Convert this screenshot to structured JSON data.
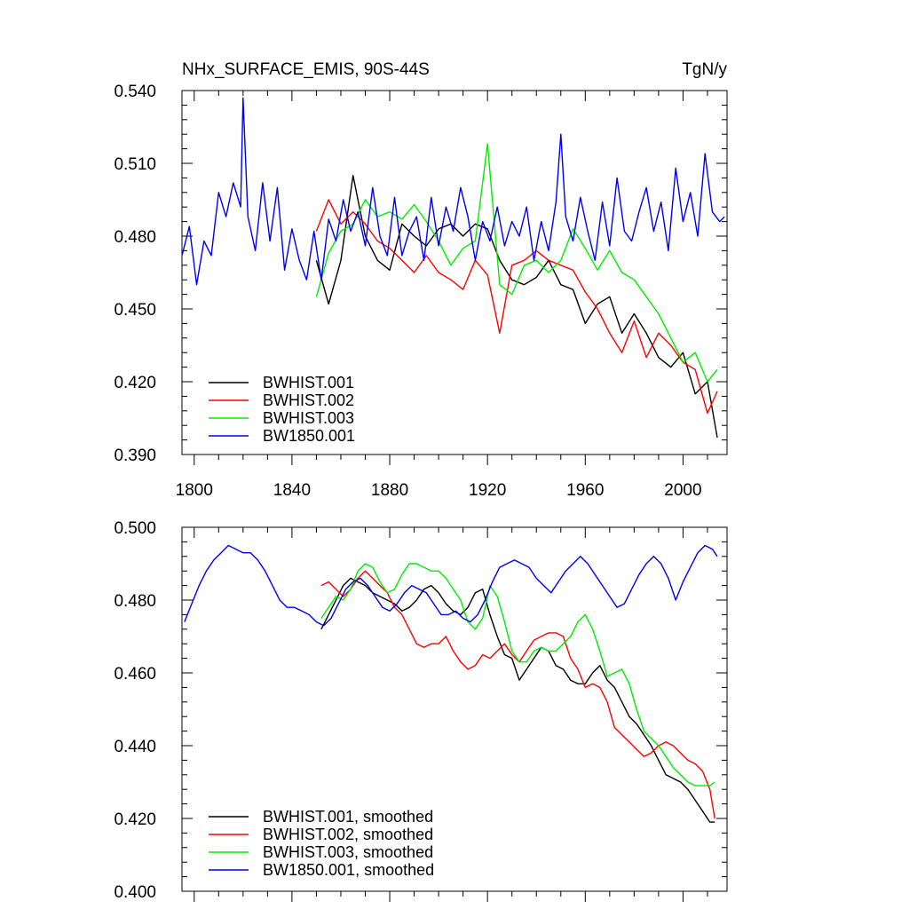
{
  "chart_data": [
    {
      "type": "line",
      "title": "NHx_SURFACE_EMIS, 90S-44S",
      "units": "TgN/y",
      "xlabel": "",
      "ylabel": "",
      "xlim": [
        1795,
        2018
      ],
      "ylim": [
        0.39,
        0.54
      ],
      "xticks": [
        1800,
        1840,
        1880,
        1920,
        1960,
        2000
      ],
      "xtick_labels": [
        "1800",
        "1840",
        "1880",
        "1920",
        "1960",
        "2000"
      ],
      "yticks": [
        0.39,
        0.42,
        0.45,
        0.48,
        0.51,
        0.54
      ],
      "ytick_labels": [
        "0.390",
        "0.420",
        "0.450",
        "0.480",
        "0.510",
        "0.540"
      ],
      "legend_position": "bottom-left",
      "series": [
        {
          "name": "BWHIST.001",
          "color": "#000000",
          "x": [
            1850,
            1855,
            1860,
            1865,
            1870,
            1875,
            1880,
            1885,
            1890,
            1895,
            1900,
            1905,
            1910,
            1915,
            1920,
            1925,
            1930,
            1935,
            1940,
            1945,
            1950,
            1955,
            1960,
            1965,
            1970,
            1975,
            1980,
            1985,
            1990,
            1995,
            2000,
            2005,
            2010,
            2014
          ],
          "y": [
            0.47,
            0.452,
            0.47,
            0.505,
            0.48,
            0.47,
            0.466,
            0.485,
            0.48,
            0.476,
            0.483,
            0.485,
            0.48,
            0.485,
            0.483,
            0.47,
            0.462,
            0.46,
            0.463,
            0.47,
            0.46,
            0.458,
            0.444,
            0.452,
            0.455,
            0.44,
            0.448,
            0.44,
            0.43,
            0.426,
            0.432,
            0.415,
            0.42,
            0.397
          ]
        },
        {
          "name": "BWHIST.002",
          "color": "#ff0000",
          "x": [
            1850,
            1855,
            1860,
            1865,
            1870,
            1875,
            1880,
            1885,
            1890,
            1895,
            1900,
            1905,
            1910,
            1915,
            1920,
            1925,
            1930,
            1935,
            1940,
            1945,
            1950,
            1955,
            1960,
            1965,
            1970,
            1975,
            1980,
            1985,
            1990,
            1995,
            2000,
            2005,
            2010,
            2014
          ],
          "y": [
            0.482,
            0.495,
            0.485,
            0.49,
            0.485,
            0.478,
            0.475,
            0.47,
            0.465,
            0.472,
            0.465,
            0.462,
            0.458,
            0.47,
            0.464,
            0.44,
            0.468,
            0.47,
            0.474,
            0.47,
            0.468,
            0.466,
            0.457,
            0.45,
            0.44,
            0.432,
            0.445,
            0.43,
            0.44,
            0.435,
            0.428,
            0.425,
            0.407,
            0.416
          ]
        },
        {
          "name": "BWHIST.003",
          "color": "#00ee00",
          "x": [
            1850,
            1855,
            1860,
            1865,
            1870,
            1875,
            1880,
            1885,
            1890,
            1895,
            1900,
            1905,
            1910,
            1915,
            1920,
            1925,
            1930,
            1935,
            1940,
            1945,
            1950,
            1955,
            1960,
            1965,
            1970,
            1975,
            1980,
            1985,
            1990,
            1995,
            2000,
            2005,
            2010,
            2014
          ],
          "y": [
            0.455,
            0.473,
            0.482,
            0.485,
            0.495,
            0.488,
            0.49,
            0.487,
            0.493,
            0.486,
            0.478,
            0.468,
            0.475,
            0.478,
            0.518,
            0.46,
            0.456,
            0.468,
            0.47,
            0.465,
            0.47,
            0.483,
            0.475,
            0.466,
            0.474,
            0.465,
            0.462,
            0.455,
            0.448,
            0.438,
            0.428,
            0.432,
            0.42,
            0.425
          ]
        },
        {
          "name": "BW1850.001",
          "color": "#0000ee",
          "x": [
            1795,
            1798,
            1801,
            1804,
            1807,
            1810,
            1813,
            1816,
            1819,
            1820,
            1822,
            1825,
            1828,
            1831,
            1834,
            1837,
            1840,
            1843,
            1846,
            1849,
            1852,
            1855,
            1858,
            1861,
            1864,
            1867,
            1870,
            1873,
            1876,
            1879,
            1882,
            1885,
            1888,
            1891,
            1894,
            1897,
            1900,
            1903,
            1906,
            1909,
            1912,
            1915,
            1918,
            1921,
            1924,
            1927,
            1930,
            1933,
            1936,
            1939,
            1942,
            1945,
            1948,
            1950,
            1952,
            1955,
            1958,
            1961,
            1964,
            1967,
            1970,
            1973,
            1976,
            1979,
            1982,
            1985,
            1988,
            1991,
            1994,
            1997,
            2000,
            2003,
            2006,
            2009,
            2012,
            2015,
            2017
          ],
          "y": [
            0.472,
            0.484,
            0.46,
            0.478,
            0.472,
            0.498,
            0.488,
            0.502,
            0.492,
            0.537,
            0.488,
            0.474,
            0.502,
            0.478,
            0.5,
            0.466,
            0.483,
            0.47,
            0.462,
            0.482,
            0.462,
            0.487,
            0.478,
            0.495,
            0.482,
            0.49,
            0.476,
            0.5,
            0.48,
            0.472,
            0.496,
            0.472,
            0.482,
            0.488,
            0.47,
            0.496,
            0.476,
            0.492,
            0.482,
            0.5,
            0.488,
            0.47,
            0.486,
            0.478,
            0.492,
            0.476,
            0.486,
            0.48,
            0.492,
            0.47,
            0.486,
            0.474,
            0.494,
            0.522,
            0.488,
            0.478,
            0.496,
            0.482,
            0.47,
            0.494,
            0.476,
            0.504,
            0.482,
            0.478,
            0.49,
            0.5,
            0.482,
            0.494,
            0.474,
            0.508,
            0.486,
            0.498,
            0.48,
            0.514,
            0.49,
            0.486,
            0.488
          ]
        }
      ]
    },
    {
      "type": "line",
      "title": "",
      "xlabel": "",
      "ylabel": "",
      "xlim": [
        1795,
        2018
      ],
      "ylim": [
        0.4,
        0.5
      ],
      "xticks": [
        1800,
        1840,
        1880,
        1920,
        1960,
        2000
      ],
      "yticks": [
        0.4,
        0.42,
        0.44,
        0.46,
        0.48,
        0.5
      ],
      "ytick_labels": [
        "0.400",
        "0.420",
        "0.440",
        "0.460",
        "0.480",
        "0.500"
      ],
      "legend_position": "bottom-left",
      "series": [
        {
          "name": "BWHIST.001, smoothed",
          "color": "#000000",
          "x": [
            1852,
            1855,
            1858,
            1861,
            1864,
            1867,
            1870,
            1873,
            1876,
            1879,
            1882,
            1885,
            1888,
            1891,
            1894,
            1897,
            1900,
            1903,
            1906,
            1909,
            1912,
            1915,
            1918,
            1921,
            1924,
            1927,
            1930,
            1933,
            1936,
            1939,
            1942,
            1945,
            1948,
            1951,
            1954,
            1957,
            1960,
            1963,
            1966,
            1969,
            1972,
            1975,
            1978,
            1981,
            1984,
            1987,
            1990,
            1993,
            1996,
            1999,
            2002,
            2005,
            2008,
            2011,
            2013
          ],
          "y": [
            0.472,
            0.476,
            0.48,
            0.484,
            0.486,
            0.485,
            0.484,
            0.482,
            0.481,
            0.48,
            0.479,
            0.477,
            0.478,
            0.48,
            0.483,
            0.484,
            0.482,
            0.479,
            0.477,
            0.476,
            0.478,
            0.482,
            0.483,
            0.476,
            0.47,
            0.465,
            0.464,
            0.458,
            0.461,
            0.464,
            0.467,
            0.466,
            0.462,
            0.461,
            0.458,
            0.457,
            0.457,
            0.46,
            0.462,
            0.458,
            0.456,
            0.452,
            0.448,
            0.446,
            0.443,
            0.44,
            0.436,
            0.432,
            0.431,
            0.43,
            0.428,
            0.425,
            0.422,
            0.419,
            0.419
          ]
        },
        {
          "name": "BWHIST.002, smoothed",
          "color": "#ff0000",
          "x": [
            1852,
            1855,
            1858,
            1861,
            1864,
            1867,
            1870,
            1873,
            1876,
            1879,
            1882,
            1885,
            1888,
            1891,
            1894,
            1897,
            1900,
            1903,
            1906,
            1909,
            1912,
            1915,
            1918,
            1921,
            1924,
            1927,
            1930,
            1933,
            1936,
            1939,
            1942,
            1945,
            1948,
            1951,
            1954,
            1957,
            1960,
            1963,
            1966,
            1969,
            1972,
            1975,
            1978,
            1981,
            1984,
            1987,
            1990,
            1993,
            1996,
            1999,
            2002,
            2005,
            2008,
            2011,
            2013
          ],
          "y": [
            0.484,
            0.485,
            0.483,
            0.481,
            0.483,
            0.486,
            0.488,
            0.486,
            0.484,
            0.482,
            0.478,
            0.476,
            0.472,
            0.468,
            0.467,
            0.468,
            0.468,
            0.47,
            0.466,
            0.463,
            0.461,
            0.462,
            0.465,
            0.464,
            0.466,
            0.468,
            0.465,
            0.463,
            0.466,
            0.469,
            0.47,
            0.471,
            0.471,
            0.47,
            0.464,
            0.461,
            0.456,
            0.457,
            0.456,
            0.452,
            0.445,
            0.443,
            0.441,
            0.439,
            0.437,
            0.438,
            0.44,
            0.441,
            0.44,
            0.438,
            0.436,
            0.435,
            0.433,
            0.428,
            0.42
          ]
        },
        {
          "name": "BWHIST.003, smoothed",
          "color": "#00ee00",
          "x": [
            1852,
            1855,
            1858,
            1861,
            1864,
            1867,
            1870,
            1873,
            1876,
            1879,
            1882,
            1885,
            1888,
            1891,
            1894,
            1897,
            1900,
            1903,
            1906,
            1909,
            1912,
            1915,
            1918,
            1921,
            1924,
            1927,
            1930,
            1933,
            1936,
            1939,
            1942,
            1945,
            1948,
            1951,
            1954,
            1957,
            1960,
            1963,
            1966,
            1969,
            1972,
            1975,
            1978,
            1981,
            1984,
            1987,
            1990,
            1993,
            1996,
            1999,
            2002,
            2005,
            2008,
            2011,
            2013
          ],
          "y": [
            0.475,
            0.478,
            0.481,
            0.48,
            0.483,
            0.488,
            0.49,
            0.489,
            0.485,
            0.482,
            0.483,
            0.487,
            0.49,
            0.49,
            0.489,
            0.488,
            0.488,
            0.486,
            0.483,
            0.48,
            0.474,
            0.472,
            0.475,
            0.484,
            0.481,
            0.474,
            0.466,
            0.463,
            0.463,
            0.466,
            0.467,
            0.466,
            0.466,
            0.468,
            0.47,
            0.474,
            0.476,
            0.472,
            0.466,
            0.459,
            0.46,
            0.461,
            0.457,
            0.45,
            0.444,
            0.442,
            0.44,
            0.437,
            0.434,
            0.432,
            0.43,
            0.429,
            0.429,
            0.429,
            0.43
          ]
        },
        {
          "name": "BW1850.001, smoothed",
          "color": "#0000ee",
          "x": [
            1796,
            1799,
            1802,
            1805,
            1808,
            1811,
            1814,
            1817,
            1820,
            1823,
            1826,
            1829,
            1832,
            1835,
            1838,
            1841,
            1844,
            1847,
            1850,
            1853,
            1856,
            1859,
            1862,
            1865,
            1868,
            1871,
            1874,
            1877,
            1880,
            1883,
            1886,
            1889,
            1892,
            1895,
            1898,
            1901,
            1904,
            1907,
            1910,
            1913,
            1916,
            1919,
            1922,
            1925,
            1928,
            1931,
            1934,
            1937,
            1940,
            1943,
            1946,
            1949,
            1952,
            1955,
            1958,
            1961,
            1964,
            1967,
            1970,
            1973,
            1976,
            1979,
            1982,
            1985,
            1988,
            1991,
            1994,
            1997,
            2000,
            2003,
            2006,
            2009,
            2012,
            2014
          ],
          "y": [
            0.474,
            0.479,
            0.484,
            0.488,
            0.491,
            0.493,
            0.495,
            0.494,
            0.493,
            0.493,
            0.491,
            0.488,
            0.484,
            0.48,
            0.478,
            0.478,
            0.477,
            0.476,
            0.474,
            0.473,
            0.475,
            0.479,
            0.483,
            0.485,
            0.486,
            0.484,
            0.481,
            0.478,
            0.477,
            0.479,
            0.482,
            0.484,
            0.483,
            0.482,
            0.479,
            0.476,
            0.476,
            0.477,
            0.475,
            0.474,
            0.476,
            0.48,
            0.485,
            0.489,
            0.49,
            0.491,
            0.49,
            0.489,
            0.486,
            0.484,
            0.482,
            0.485,
            0.488,
            0.49,
            0.492,
            0.49,
            0.487,
            0.484,
            0.481,
            0.478,
            0.479,
            0.483,
            0.487,
            0.49,
            0.492,
            0.49,
            0.486,
            0.48,
            0.485,
            0.489,
            0.493,
            0.495,
            0.494,
            0.492
          ]
        }
      ]
    }
  ]
}
